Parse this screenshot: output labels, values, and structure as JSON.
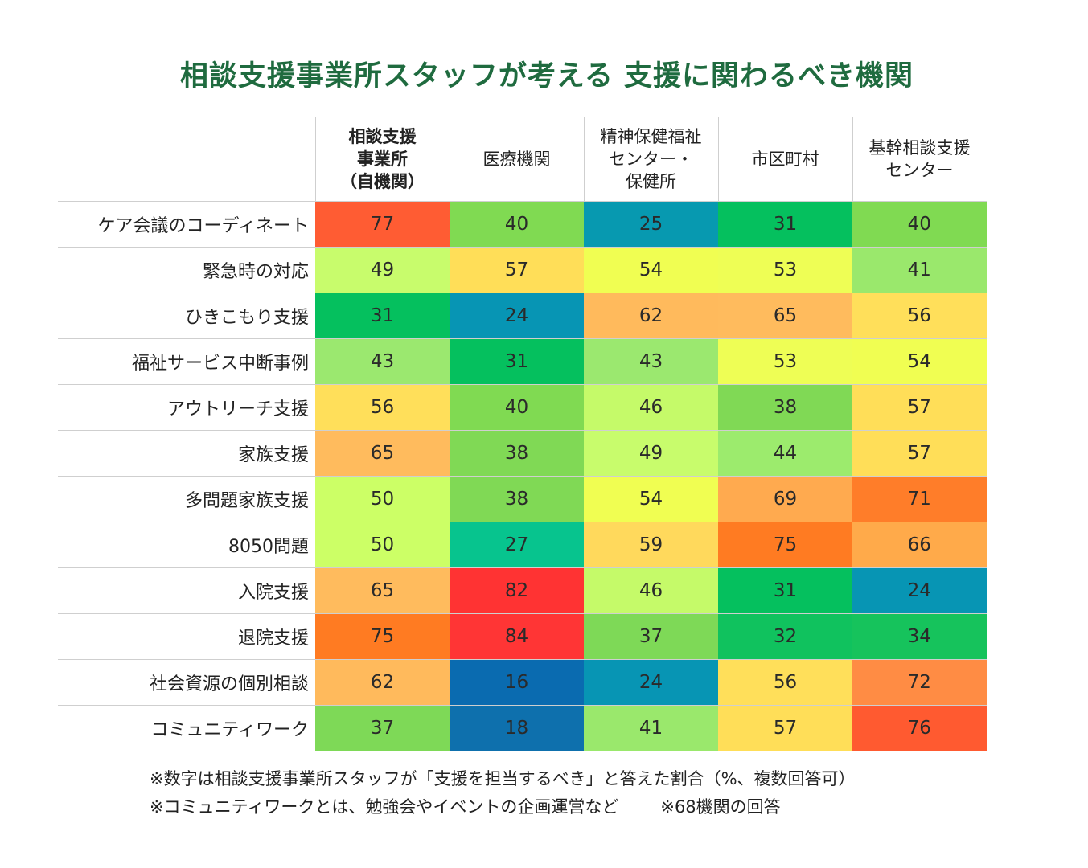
{
  "chart_data": {
    "type": "heatmap",
    "title": "相談支援事業所スタッフが考える 支援に関わるべき機関",
    "columns": [
      "相談支援\n事業所\n（自機関）",
      "医療機関",
      "精神保健福祉\nセンター・\n保健所",
      "市区町村",
      "基幹相談支援\nセンター"
    ],
    "rows": [
      "ケア会議のコーディネート",
      "緊急時の対応",
      "ひきこもり支援",
      "福祉サービス中断事例",
      "アウトリーチ支援",
      "家族支援",
      "多問題家族支援",
      "8050問題",
      "入院支援",
      "退院支援",
      "社会資源の個別相談",
      "コミュニティワーク"
    ],
    "values": [
      [
        77,
        40,
        25,
        31,
        40
      ],
      [
        49,
        57,
        54,
        53,
        41
      ],
      [
        31,
        24,
        62,
        65,
        56
      ],
      [
        43,
        31,
        43,
        53,
        54
      ],
      [
        56,
        40,
        46,
        38,
        57
      ],
      [
        65,
        38,
        49,
        44,
        57
      ],
      [
        50,
        38,
        54,
        69,
        71
      ],
      [
        50,
        27,
        59,
        75,
        66
      ],
      [
        65,
        82,
        46,
        31,
        24
      ],
      [
        75,
        84,
        37,
        32,
        34
      ],
      [
        62,
        16,
        24,
        56,
        72
      ],
      [
        37,
        18,
        41,
        57,
        76
      ]
    ],
    "color_scale": [
      {
        "v": 16,
        "color": "#0a6bb0"
      },
      {
        "v": 18,
        "color": "#0e70ad"
      },
      {
        "v": 24,
        "color": "#0795b4"
      },
      {
        "v": 25,
        "color": "#0799b0"
      },
      {
        "v": 27,
        "color": "#07c48e"
      },
      {
        "v": 31,
        "color": "#05c05e"
      },
      {
        "v": 32,
        "color": "#10c25e"
      },
      {
        "v": 34,
        "color": "#16c35c"
      },
      {
        "v": 37,
        "color": "#7ed957"
      },
      {
        "v": 38,
        "color": "#80d955"
      },
      {
        "v": 40,
        "color": "#80da52"
      },
      {
        "v": 41,
        "color": "#9ae86c"
      },
      {
        "v": 43,
        "color": "#9be86f"
      },
      {
        "v": 44,
        "color": "#9ceb6d"
      },
      {
        "v": 46,
        "color": "#c5fa69"
      },
      {
        "v": 49,
        "color": "#c8fc6c"
      },
      {
        "v": 50,
        "color": "#ccff66"
      },
      {
        "v": 53,
        "color": "#eefe55"
      },
      {
        "v": 54,
        "color": "#f0fe52"
      },
      {
        "v": 56,
        "color": "#ffdf5a"
      },
      {
        "v": 57,
        "color": "#ffde58"
      },
      {
        "v": 59,
        "color": "#ffd95c"
      },
      {
        "v": 62,
        "color": "#ffba5c"
      },
      {
        "v": 65,
        "color": "#ffbb5d"
      },
      {
        "v": 66,
        "color": "#ffaa4a"
      },
      {
        "v": 69,
        "color": "#ffaa4f"
      },
      {
        "v": 71,
        "color": "#ff7d29"
      },
      {
        "v": 72,
        "color": "#ff8c44"
      },
      {
        "v": 75,
        "color": "#ff7b22"
      },
      {
        "v": 76,
        "color": "#ff5a30"
      },
      {
        "v": 77,
        "color": "#ff5c33"
      },
      {
        "v": 82,
        "color": "#ff3333"
      },
      {
        "v": 84,
        "color": "#ff3535"
      }
    ],
    "highlight_column": 0
  },
  "notes": {
    "line1": "※数字は相談支援事業所スタッフが「支援を担当するべき」と答えた割合（%、複数回答可）",
    "line2a": "※コミュニティワークとは、勉強会やイベントの企画運営など",
    "line2b": "※68機関の回答"
  }
}
